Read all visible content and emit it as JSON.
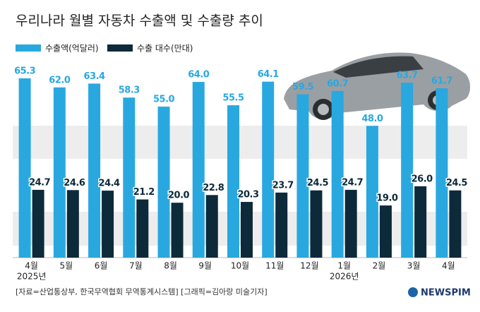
{
  "chart_data": {
    "type": "bar",
    "title": "우리나라 월별 자동차 수출액 및 수출량 추이",
    "categories": [
      "4월",
      "5월",
      "6월",
      "7월",
      "8월",
      "9월",
      "10월",
      "11월",
      "12월",
      "1월",
      "2월",
      "3월",
      "4월"
    ],
    "category_years": [
      "2025년",
      null,
      null,
      null,
      null,
      null,
      null,
      null,
      null,
      "2026년",
      null,
      null,
      null
    ],
    "series": [
      {
        "name": "수출액(억달러)",
        "color": "#29a8e0",
        "values": [
          65.3,
          62.0,
          63.4,
          58.3,
          55.0,
          64.0,
          55.5,
          64.1,
          59.5,
          60.7,
          48.0,
          63.7,
          61.7
        ],
        "value_labels": [
          "65.3",
          "62.0",
          "63.4",
          "58.3",
          "55.0",
          "64.0",
          "55.5",
          "64.1",
          "59.5",
          "60.7",
          "48.0",
          "63.7",
          "61.7"
        ]
      },
      {
        "name": "수출 대수(만대)",
        "color": "#0d2a3a",
        "values": [
          24.7,
          24.6,
          24.4,
          21.2,
          20.0,
          22.8,
          20.3,
          23.7,
          24.5,
          24.7,
          19.0,
          26.0,
          24.5
        ],
        "value_labels": [
          "24.7",
          "24.6",
          "24.4",
          "21.2",
          "20.0",
          "22.8",
          "20.3",
          "23.7",
          "24.5",
          "24.7",
          "19.0",
          "26.0",
          "24.5"
        ]
      }
    ],
    "source": "[자료=산업통상부, 한국무역협회 무역통계시스템] [그래픽=김아랑 미술기자]",
    "brand": "NEWSPIM"
  }
}
